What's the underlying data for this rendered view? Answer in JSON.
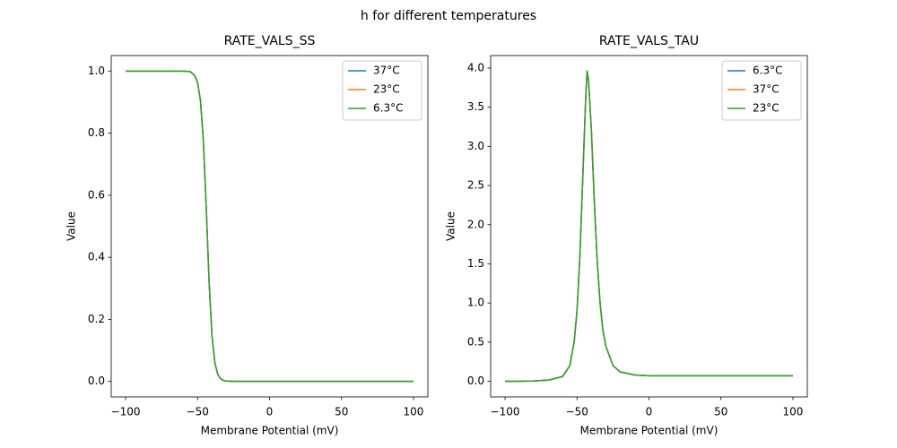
{
  "title": "h for different temperatures",
  "chart_data": [
    {
      "type": "line",
      "title": "RATE_VALS_SS",
      "xlabel": "Membrane Potential (mV)",
      "ylabel": "Value",
      "x": [
        -100,
        -90,
        -80,
        -70,
        -60,
        -55,
        -52,
        -50,
        -48,
        -46,
        -44,
        -42,
        -40,
        -38,
        -36,
        -34,
        -32,
        -30,
        -25,
        -20,
        -10,
        0,
        10,
        20,
        30,
        40,
        50,
        60,
        70,
        80,
        90,
        100
      ],
      "series": [
        {
          "name": "37°C",
          "color": "#1f77b4",
          "values": [
            1,
            1,
            1,
            1,
            1,
            0.998,
            0.986,
            0.963,
            0.905,
            0.777,
            0.562,
            0.321,
            0.148,
            0.06,
            0.023,
            0.0086,
            0.0032,
            0.0012,
            0,
            0,
            0,
            0,
            0,
            0,
            0,
            0,
            0,
            0,
            0,
            0,
            0,
            0
          ]
        },
        {
          "name": "23°C",
          "color": "#ff7f0e",
          "values": [
            1,
            1,
            1,
            1,
            1,
            0.998,
            0.986,
            0.963,
            0.905,
            0.777,
            0.562,
            0.321,
            0.148,
            0.06,
            0.023,
            0.0086,
            0.0032,
            0.0012,
            0,
            0,
            0,
            0,
            0,
            0,
            0,
            0,
            0,
            0,
            0,
            0,
            0,
            0
          ]
        },
        {
          "name": "6.3°C",
          "color": "#2ca02c",
          "values": [
            1,
            1,
            1,
            1,
            1,
            0.998,
            0.986,
            0.963,
            0.905,
            0.777,
            0.562,
            0.321,
            0.148,
            0.06,
            0.023,
            0.0086,
            0.0032,
            0.0012,
            0,
            0,
            0,
            0,
            0,
            0,
            0,
            0,
            0,
            0,
            0,
            0,
            0,
            0
          ]
        }
      ],
      "xlim": [
        -110,
        110
      ],
      "ylim": [
        -0.05,
        1.05
      ],
      "xticks": [
        {
          "value": -100,
          "label": "−100"
        },
        {
          "value": -50,
          "label": "−50"
        },
        0,
        50,
        100
      ],
      "yticks": [
        {
          "value": 0,
          "label": "0.0"
        },
        0.2,
        0.4,
        0.6,
        0.8,
        {
          "value": 1,
          "label": "1.0"
        }
      ],
      "legend": "upper right"
    },
    {
      "type": "line",
      "title": "RATE_VALS_TAU",
      "xlabel": "Membrane Potential (mV)",
      "ylabel": "Value",
      "x": [
        -100,
        -90,
        -80,
        -70,
        -60,
        -55,
        -52,
        -50,
        -48,
        -46,
        -44,
        -43,
        -42,
        -40,
        -38,
        -36,
        -34,
        -32,
        -30,
        -25,
        -20,
        -10,
        0,
        10,
        20,
        30,
        40,
        50,
        60,
        70,
        80,
        90,
        100
      ],
      "series": [
        {
          "name": "6.3°C",
          "color": "#1f77b4",
          "values": [
            0,
            0,
            0.005,
            0.015,
            0.06,
            0.2,
            0.5,
            0.9,
            1.6,
            2.6,
            3.6,
            3.96,
            3.85,
            3.2,
            2.3,
            1.55,
            1.0,
            0.65,
            0.45,
            0.2,
            0.12,
            0.08,
            0.07,
            0.07,
            0.07,
            0.07,
            0.07,
            0.07,
            0.07,
            0.07,
            0.07,
            0.07,
            0.07
          ]
        },
        {
          "name": "37°C",
          "color": "#ff7f0e",
          "values": [
            0,
            0,
            0.005,
            0.015,
            0.06,
            0.2,
            0.5,
            0.9,
            1.6,
            2.6,
            3.6,
            3.96,
            3.85,
            3.2,
            2.3,
            1.55,
            1.0,
            0.65,
            0.45,
            0.2,
            0.12,
            0.08,
            0.07,
            0.07,
            0.07,
            0.07,
            0.07,
            0.07,
            0.07,
            0.07,
            0.07,
            0.07,
            0.07
          ]
        },
        {
          "name": "23°C",
          "color": "#2ca02c",
          "values": [
            0,
            0,
            0.005,
            0.015,
            0.06,
            0.2,
            0.5,
            0.9,
            1.6,
            2.6,
            3.6,
            3.96,
            3.85,
            3.2,
            2.3,
            1.55,
            1.0,
            0.65,
            0.45,
            0.2,
            0.12,
            0.08,
            0.07,
            0.07,
            0.07,
            0.07,
            0.07,
            0.07,
            0.07,
            0.07,
            0.07,
            0.07,
            0.07
          ]
        }
      ],
      "xlim": [
        -110,
        110
      ],
      "ylim": [
        -0.2,
        4.16
      ],
      "xticks": [
        {
          "value": -100,
          "label": "−100"
        },
        {
          "value": -50,
          "label": "−50"
        },
        0,
        50,
        100
      ],
      "yticks": [
        {
          "value": 0,
          "label": "0.0"
        },
        0.5,
        {
          "value": 1,
          "label": "1.0"
        },
        1.5,
        {
          "value": 2,
          "label": "2.0"
        },
        2.5,
        {
          "value": 3,
          "label": "3.0"
        },
        3.5,
        {
          "value": 4,
          "label": "4.0"
        }
      ],
      "legend": "upper right"
    }
  ]
}
